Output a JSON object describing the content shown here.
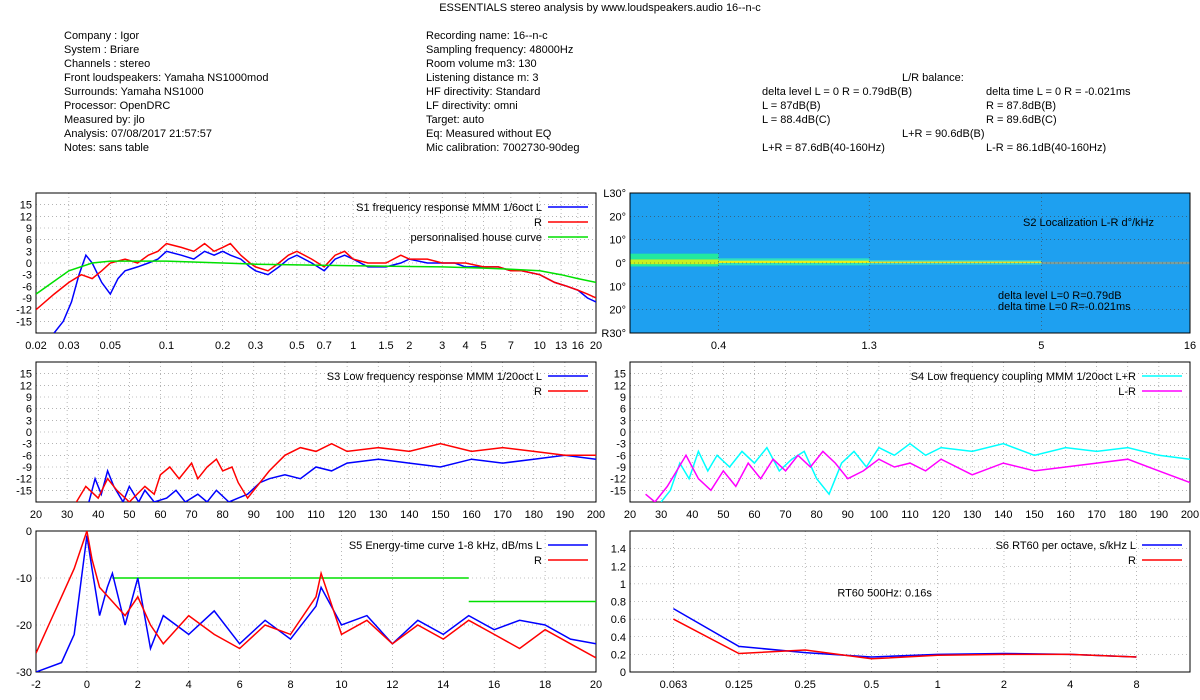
{
  "header": {
    "title": "ESSENTIALS stereo analysis by www.loudspeakers.audio     16--n-c",
    "left": [
      "Company : Igor",
      "System : Briare",
      "Channels : stereo",
      "Front loudspeakers: Yamaha NS1000mod",
      "Surrounds: Yamaha NS1000",
      "Processor: OpenDRC",
      "Measured by: jlo",
      "Analysis: 07/08/2017 21:57:57",
      "Notes: sans table"
    ],
    "mid": [
      "Recording name: 16--n-c",
      "Sampling frequency: 48000Hz",
      "Room volume m3: 130",
      "Listening distance m: 3",
      "HF directivity: Standard",
      "LF directivity: omni",
      "Target: auto",
      "Eq: Measured without EQ",
      "Mic calibration: 7002730-90deg"
    ],
    "balance_title": "L/R balance:",
    "bal_left": [
      "delta level L = 0  R = 0.79dB(B)",
      "L = 87dB(B)",
      "L = 88.4dB(C)"
    ],
    "bal_right": [
      "delta time  L = 0  R = -0.021ms",
      "R = 87.8dB(B)",
      "R = 89.6dB(C)"
    ],
    "bal_sum": "L+R = 90.6dB(B)",
    "bal_lf_sum": "L+R = 87.6dB(40-160Hz)",
    "bal_lf_diff": "L-R = 86.1dB(40-160Hz)"
  },
  "colors": {
    "L": "#0000ff",
    "R": "#ff0000",
    "target": "#00e000",
    "sum": "#00ffff",
    "diff": "#ff00ff",
    "map_bg": "#1ea0f0"
  },
  "chart_data": [
    {
      "id": "s1",
      "type": "line",
      "title": "S1   frequency response MMM 1/6oct L",
      "xscale": "log",
      "xlim": [
        0.02,
        20
      ],
      "ylim": [
        -18,
        18
      ],
      "xticks": [
        0.02,
        0.03,
        0.05,
        0.1,
        0.2,
        0.3,
        0.5,
        0.7,
        1,
        1.5,
        2,
        3,
        4,
        5,
        7,
        10,
        13,
        16,
        20
      ],
      "xtick_labels": [
        "0.02",
        "0.03",
        "0.05",
        "0.1",
        "0.2",
        "0.3",
        "0.5",
        "0.7",
        "1",
        "1.5",
        "2",
        "3",
        "4",
        "5",
        "7",
        "10",
        "13",
        "16",
        "20"
      ],
      "yticks": [
        -15,
        -12,
        -9,
        -6,
        -3,
        0,
        3,
        6,
        9,
        12,
        15
      ],
      "series": [
        {
          "name": "S1   frequency response MMM 1/6oct L",
          "color": "L",
          "x": [
            0.025,
            0.028,
            0.031,
            0.034,
            0.037,
            0.04,
            0.045,
            0.05,
            0.055,
            0.06,
            0.07,
            0.08,
            0.09,
            0.1,
            0.12,
            0.14,
            0.16,
            0.18,
            0.2,
            0.22,
            0.25,
            0.28,
            0.3,
            0.35,
            0.4,
            0.45,
            0.5,
            0.6,
            0.7,
            0.8,
            0.9,
            1,
            1.2,
            1.5,
            1.8,
            2,
            2.5,
            3,
            3.5,
            4,
            5,
            6,
            7,
            8,
            10,
            12,
            14,
            16,
            18,
            20
          ],
          "y": [
            -18,
            -15,
            -10,
            -3,
            2,
            0,
            -5,
            -8,
            -4,
            -2,
            -1,
            0,
            1,
            3,
            2,
            1,
            3,
            2,
            3,
            2,
            1,
            -1,
            -2,
            -3,
            -1,
            1,
            2,
            0,
            -2,
            1,
            2,
            1,
            -1,
            -1,
            0,
            1,
            0,
            0,
            0,
            -1,
            -1,
            -1,
            -2,
            -2,
            -3,
            -5,
            -6,
            -7,
            -9,
            -10
          ]
        },
        {
          "name": "R",
          "color": "R",
          "x": [
            0.02,
            0.025,
            0.03,
            0.035,
            0.04,
            0.045,
            0.05,
            0.06,
            0.07,
            0.08,
            0.09,
            0.1,
            0.12,
            0.14,
            0.16,
            0.18,
            0.2,
            0.22,
            0.25,
            0.28,
            0.3,
            0.35,
            0.4,
            0.45,
            0.5,
            0.6,
            0.7,
            0.8,
            0.9,
            1,
            1.2,
            1.5,
            1.8,
            2,
            2.5,
            3,
            3.5,
            4,
            5,
            6,
            7,
            8,
            10,
            12,
            14,
            16,
            18,
            20
          ],
          "y": [
            -12,
            -8,
            -5,
            -3,
            -4,
            -2,
            0,
            1,
            0,
            2,
            3,
            5,
            4,
            3,
            5,
            3,
            4,
            5,
            2,
            0,
            -1,
            -2,
            0,
            2,
            3,
            1,
            -1,
            2,
            3,
            1,
            0,
            0,
            2,
            1,
            1,
            0,
            0,
            0,
            -1,
            -1,
            -2,
            -2,
            -3,
            -5,
            -6,
            -7,
            -8,
            -9
          ]
        },
        {
          "name": "personnalised house curve",
          "color": "target",
          "x": [
            0.02,
            0.03,
            0.04,
            0.05,
            0.07,
            0.1,
            0.2,
            0.3,
            0.5,
            1,
            2,
            3,
            5,
            7,
            10,
            13,
            16,
            20
          ],
          "y": [
            -8,
            -2,
            0,
            0.5,
            0.5,
            0.5,
            0,
            -0.3,
            -0.5,
            -0.7,
            -0.9,
            -1,
            -1.3,
            -1.6,
            -2,
            -3,
            -4,
            -5
          ]
        }
      ]
    },
    {
      "id": "s2",
      "type": "heatmap",
      "title": "S2   Localization L-R d°/kHz",
      "xscale": "log",
      "xlim": [
        0.2,
        16
      ],
      "ylim": [
        -30,
        30
      ],
      "xticks": [
        0.4,
        1.3,
        5,
        16
      ],
      "xtick_labels": [
        "0.4",
        "1.3",
        "5",
        "16"
      ],
      "yticks": [
        30,
        20,
        10,
        0,
        -10,
        -20,
        -30
      ],
      "ytick_labels": [
        "L30°",
        "20°",
        "10°",
        "0°",
        "10°",
        "20°",
        "R30°"
      ],
      "annotations": [
        "delta level  L=0  R=0.79dB",
        "delta time  L=0  R=-0.021ms"
      ]
    },
    {
      "id": "s3",
      "type": "line",
      "title": "S3   Low frequency response MMM 1/20oct L",
      "xlim": [
        20,
        200
      ],
      "ylim": [
        -18,
        18
      ],
      "xticks": [
        20,
        30,
        40,
        50,
        60,
        70,
        80,
        90,
        100,
        110,
        120,
        130,
        140,
        150,
        160,
        170,
        180,
        190,
        200
      ],
      "yticks": [
        -15,
        -12,
        -9,
        -6,
        -3,
        0,
        3,
        6,
        9,
        12,
        15
      ],
      "series": [
        {
          "name": "S3   Low frequency response MMM 1/20oct L",
          "color": "L",
          "x": [
            37,
            39,
            41,
            43,
            45,
            48,
            50,
            53,
            55,
            58,
            62,
            65,
            68,
            72,
            75,
            78,
            82,
            85,
            88,
            92,
            95,
            100,
            105,
            110,
            115,
            120,
            130,
            140,
            150,
            160,
            170,
            180,
            190,
            200
          ],
          "y": [
            -18,
            -12,
            -16,
            -10,
            -14,
            -18,
            -14,
            -18,
            -15,
            -18,
            -17,
            -15,
            -18,
            -16,
            -18,
            -15,
            -18,
            -17,
            -16,
            -13,
            -12,
            -11,
            -12,
            -9,
            -10,
            -8,
            -7,
            -8,
            -9,
            -7,
            -8,
            -7,
            -6,
            -7
          ]
        },
        {
          "name": "R",
          "color": "R",
          "x": [
            33,
            36,
            40,
            43,
            46,
            50,
            55,
            58,
            60,
            63,
            66,
            70,
            72,
            75,
            78,
            80,
            83,
            85,
            88,
            90,
            95,
            100,
            105,
            110,
            115,
            120,
            130,
            140,
            150,
            160,
            170,
            180,
            190,
            200
          ],
          "y": [
            -18,
            -14,
            -17,
            -12,
            -15,
            -18,
            -14,
            -16,
            -11,
            -9,
            -12,
            -8,
            -12,
            -9,
            -7,
            -10,
            -9,
            -13,
            -17,
            -15,
            -10,
            -6,
            -4,
            -5,
            -3,
            -5,
            -4,
            -5,
            -3,
            -5,
            -4,
            -5,
            -6,
            -6
          ]
        }
      ]
    },
    {
      "id": "s4",
      "type": "line",
      "title": "S4   Low frequency coupling MMM 1/20oct L+R",
      "xlim": [
        20,
        200
      ],
      "ylim": [
        -18,
        18
      ],
      "xticks": [
        20,
        30,
        40,
        50,
        60,
        70,
        80,
        90,
        100,
        110,
        120,
        130,
        140,
        150,
        160,
        170,
        180,
        190,
        200
      ],
      "yticks": [
        -15,
        -12,
        -9,
        -6,
        -3,
        0,
        3,
        6,
        9,
        12,
        15
      ],
      "series": [
        {
          "name": "S4   Low frequency coupling MMM 1/20oct L+R",
          "color": "sum",
          "x": [
            30,
            33,
            36,
            39,
            42,
            45,
            48,
            52,
            56,
            60,
            64,
            68,
            72,
            76,
            80,
            84,
            88,
            92,
            96,
            100,
            105,
            110,
            115,
            120,
            130,
            140,
            150,
            160,
            170,
            180,
            190,
            200
          ],
          "y": [
            -18,
            -15,
            -8,
            -12,
            -5,
            -10,
            -6,
            -9,
            -5,
            -8,
            -4,
            -10,
            -7,
            -5,
            -12,
            -16,
            -8,
            -5,
            -9,
            -4,
            -6,
            -3,
            -6,
            -4,
            -5,
            -3,
            -6,
            -4,
            -5,
            -4,
            -6,
            -7
          ]
        },
        {
          "name": "L-R",
          "color": "diff",
          "x": [
            25,
            28,
            32,
            35,
            38,
            42,
            46,
            50,
            54,
            58,
            62,
            66,
            70,
            74,
            78,
            82,
            86,
            90,
            95,
            100,
            105,
            110,
            115,
            120,
            130,
            140,
            150,
            160,
            170,
            180,
            190,
            200
          ],
          "y": [
            -16,
            -18,
            -14,
            -10,
            -6,
            -12,
            -15,
            -10,
            -14,
            -8,
            -12,
            -7,
            -10,
            -6,
            -9,
            -5,
            -8,
            -12,
            -10,
            -7,
            -9,
            -8,
            -10,
            -7,
            -11,
            -8,
            -10,
            -9,
            -8,
            -7,
            -10,
            -13
          ]
        }
      ]
    },
    {
      "id": "s5",
      "type": "line",
      "title": "S5   Energy-time curve 1-8 kHz, dB/ms L",
      "xlim": [
        -2,
        20
      ],
      "ylim": [
        -30,
        0
      ],
      "xticks": [
        -2,
        0,
        2,
        4,
        6,
        8,
        10,
        12,
        14,
        16,
        18,
        20
      ],
      "yticks": [
        -30,
        -20,
        -10,
        0
      ],
      "series": [
        {
          "name": "S5   Energy-time curve 1-8 kHz, dB/ms L",
          "color": "L",
          "x": [
            -2,
            -1,
            -0.5,
            0,
            0.2,
            0.5,
            0.8,
            1,
            1.5,
            2,
            2.5,
            3,
            4,
            5,
            6,
            7,
            8,
            9,
            9.2,
            10,
            11,
            12,
            13,
            14,
            15,
            16,
            17,
            18,
            19,
            20
          ],
          "y": [
            -30,
            -28,
            -22,
            -1,
            -8,
            -18,
            -12,
            -9,
            -20,
            -10,
            -25,
            -18,
            -22,
            -17,
            -24,
            -19,
            -23,
            -16,
            -12,
            -20,
            -18,
            -24,
            -19,
            -22,
            -18,
            -21,
            -19,
            -20,
            -23,
            -24
          ]
        },
        {
          "name": "R",
          "color": "R",
          "x": [
            -2,
            -1.5,
            -1,
            -0.5,
            0,
            0.2,
            0.5,
            1,
            1.5,
            2,
            2.5,
            3,
            4,
            5,
            6,
            7,
            8,
            9,
            9.2,
            10,
            11,
            12,
            13,
            14,
            15,
            16,
            17,
            18,
            19,
            20
          ],
          "y": [
            -26,
            -20,
            -14,
            -8,
            0,
            -6,
            -12,
            -15,
            -18,
            -14,
            -20,
            -24,
            -18,
            -22,
            -25,
            -20,
            -22,
            -14,
            -9,
            -22,
            -19,
            -24,
            -20,
            -23,
            -19,
            -22,
            -25,
            -21,
            -24,
            -27
          ]
        }
      ],
      "segments": [
        {
          "x": [
            1,
            15
          ],
          "y": -10
        },
        {
          "x": [
            15,
            20
          ],
          "y": -15
        }
      ]
    },
    {
      "id": "s6",
      "type": "line",
      "title": "S6   RT60 per octave, s/kHz L",
      "xscale": "log",
      "xlim": [
        0.04,
        14
      ],
      "ylim": [
        0,
        1.6
      ],
      "xticks": [
        0.063,
        0.125,
        0.25,
        0.5,
        1,
        2,
        4,
        8
      ],
      "xtick_labels": [
        "0.063",
        "0.125",
        "0.25",
        "0.5",
        "1",
        "2",
        "4",
        "8"
      ],
      "yticks": [
        0,
        0.2,
        0.4,
        0.6,
        0.8,
        1,
        1.2,
        1.4
      ],
      "ytick_labels": [
        "0",
        "0.2",
        "0.4",
        "0.6",
        "0.8",
        "1",
        "1.2",
        "1.4"
      ],
      "series": [
        {
          "name": "S6   RT60 per octave, s/kHz L",
          "color": "L",
          "x": [
            0.063,
            0.125,
            0.25,
            0.5,
            1,
            2,
            4,
            8
          ],
          "y": [
            0.72,
            0.29,
            0.22,
            0.17,
            0.2,
            0.21,
            0.2,
            0.17
          ]
        },
        {
          "name": "R",
          "color": "R",
          "x": [
            0.063,
            0.125,
            0.25,
            0.5,
            1,
            2,
            4,
            8
          ],
          "y": [
            0.6,
            0.21,
            0.25,
            0.15,
            0.19,
            0.2,
            0.2,
            0.17
          ]
        }
      ],
      "annotation": "RT60 500Hz: 0.16s"
    }
  ]
}
